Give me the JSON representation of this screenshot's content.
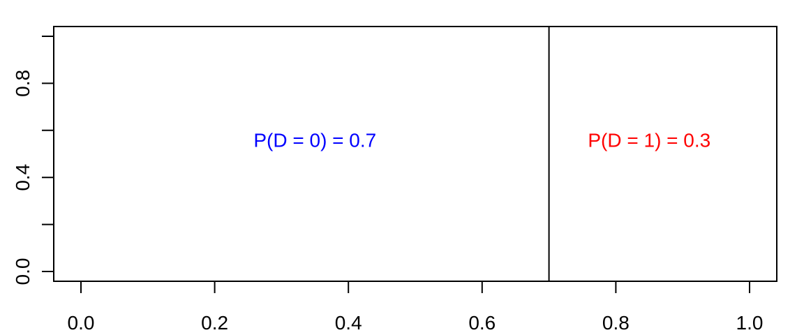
{
  "chart_data": {
    "type": "area",
    "title": "",
    "xlabel": "",
    "ylabel": "",
    "xlim": [
      0,
      1
    ],
    "ylim": [
      0,
      1
    ],
    "x_ticks": [
      0.0,
      0.2,
      0.4,
      0.6,
      0.8,
      1.0
    ],
    "x_tick_labels": [
      "0.0",
      "0.2",
      "0.4",
      "0.6",
      "0.8",
      "1.0"
    ],
    "y_ticks": [
      0.0,
      0.2,
      0.4,
      0.6,
      0.8,
      1.0
    ],
    "y_tick_labels": [
      "0.0",
      "",
      "0.4",
      "",
      "0.8",
      ""
    ],
    "grid": false,
    "divider_x": 0.7,
    "regions": [
      {
        "label": "P(D = 0) = 0.7",
        "value": 0.7,
        "x_center": 0.35,
        "y": 0.5,
        "color": "#0000ff"
      },
      {
        "label": "P(D = 1) = 0.3",
        "value": 0.3,
        "x_center": 0.85,
        "y": 0.5,
        "color": "#ff0000"
      }
    ]
  }
}
